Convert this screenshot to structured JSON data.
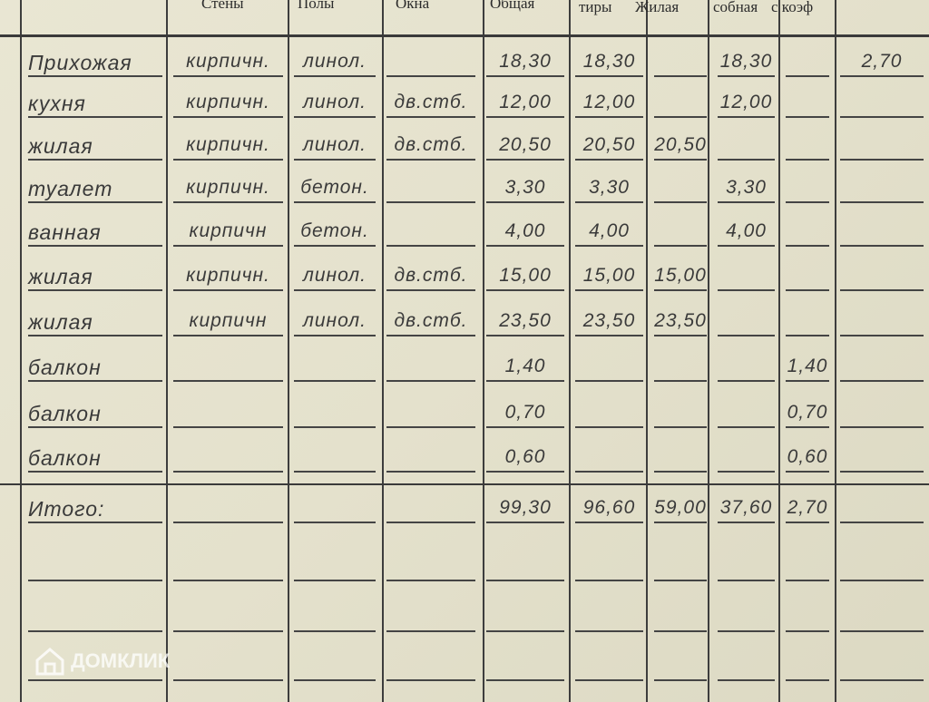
{
  "header": {
    "columns": [
      "Стены",
      "Полы",
      "Окна",
      "Общая",
      "тиры",
      "Жилая",
      "собная",
      "с коэф"
    ]
  },
  "rows": [
    [
      "Прихожая",
      "кирпичн.",
      "линол.",
      "",
      "18,30",
      "18,30",
      "",
      "18,30",
      "",
      "2,70"
    ],
    [
      "кухня",
      "кирпичн.",
      "линол.",
      "дв.стб.",
      "12,00",
      "12,00",
      "",
      "12,00",
      "",
      ""
    ],
    [
      "жилая",
      "кирпичн.",
      "линол.",
      "дв.стб.",
      "20,50",
      "20,50",
      "20,50",
      "",
      "",
      ""
    ],
    [
      "туалет",
      "кирпичн.",
      "бетон.",
      "",
      "3,30",
      "3,30",
      "",
      "3,30",
      "",
      ""
    ],
    [
      "ванная",
      "кирпичн",
      "бетон.",
      "",
      "4,00",
      "4,00",
      "",
      "4,00",
      "",
      ""
    ],
    [
      "жилая",
      "кирпичн.",
      "линол.",
      "дв.стб.",
      "15,00",
      "15,00",
      "15,00",
      "",
      "",
      ""
    ],
    [
      "жилая",
      "кирпичн",
      "линол.",
      "дв.стб.",
      "23,50",
      "23,50",
      "23,50",
      "",
      "",
      ""
    ],
    [
      "балкон",
      "",
      "",
      "",
      "1,40",
      "",
      "",
      "",
      "1,40",
      ""
    ],
    [
      "балкон",
      "",
      "",
      "",
      "0,70",
      "",
      "",
      "",
      "0,70",
      ""
    ],
    [
      "балкон",
      "",
      "",
      "",
      "0,60",
      "",
      "",
      "",
      "0,60",
      ""
    ]
  ],
  "total": [
    "Итого:",
    "",
    "",
    "",
    "99,30",
    "96,60",
    "59,00",
    "37,60",
    "2,70",
    ""
  ],
  "watermark": "ДОМКЛИК"
}
